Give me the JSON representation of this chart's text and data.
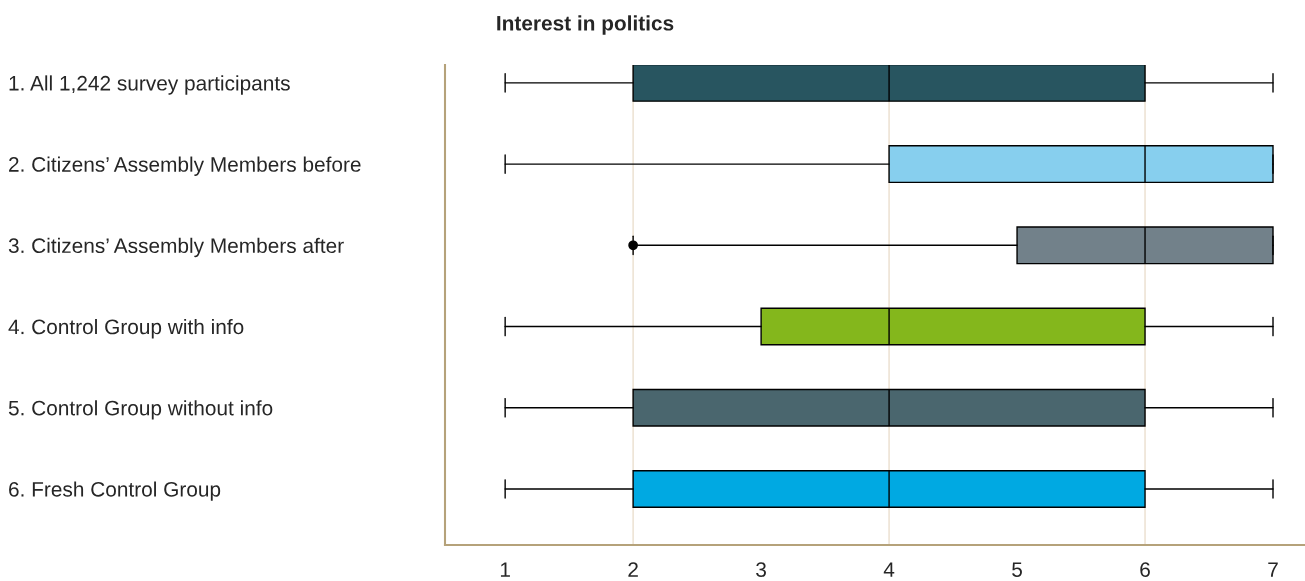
{
  "chart_data": {
    "type": "box",
    "orientation": "horizontal",
    "title": "Interest in politics",
    "categories": [
      "1. All 1,242 survey participants",
      "2. Citizens’ Assembly Members before",
      "3. Citizens’ Assembly Members after",
      "4. Control Group with info",
      "5. Control Group without info",
      "6. Fresh Control Group"
    ],
    "boxes": [
      {
        "low": 1,
        "q1": 2,
        "median": 4,
        "q3": 6,
        "high": 7
      },
      {
        "low": 1,
        "q1": 4,
        "median": 6,
        "q3": 7,
        "high": 7
      },
      {
        "low": 2,
        "q1": 5,
        "median": 6,
        "q3": 7,
        "high": 7,
        "outliers": [
          2
        ]
      },
      {
        "low": 1,
        "q1": 3,
        "median": 4,
        "q3": 6,
        "high": 7
      },
      {
        "low": 1,
        "q1": 2,
        "median": 4,
        "q3": 6,
        "high": 7
      },
      {
        "low": 1,
        "q1": 2,
        "median": 4,
        "q3": 6,
        "high": 7
      }
    ],
    "colors": [
      "#285560",
      "#87cfee",
      "#72818a",
      "#84b71c",
      "#4a666e",
      "#00a9e2"
    ],
    "xlim": [
      0.53,
      7.25
    ],
    "xticks": [
      1,
      2,
      3,
      4,
      5,
      6,
      7
    ],
    "ref_lines": [
      {
        "axis": "x",
        "value": 2,
        "color": "#eee4d6"
      },
      {
        "axis": "x",
        "value": 4,
        "color": "#eee4d6"
      },
      {
        "axis": "x",
        "value": 6,
        "color": "#eee4d6"
      }
    ],
    "grid": false,
    "legend": false
  }
}
